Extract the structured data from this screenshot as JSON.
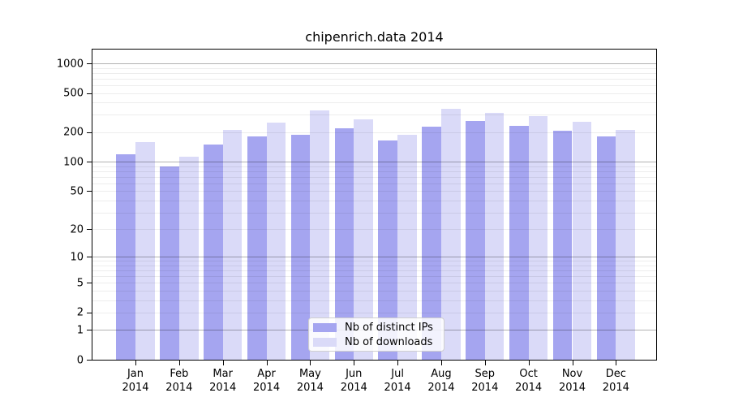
{
  "title": "chipenrich.data 2014",
  "chart_data": {
    "type": "bar",
    "title": "chipenrich.data 2014",
    "x_categories": [
      "Jan",
      "Feb",
      "Mar",
      "Apr",
      "May",
      "Jun",
      "Jul",
      "Aug",
      "Sep",
      "Oct",
      "Nov",
      "Dec"
    ],
    "x_year": "2014",
    "series": [
      {
        "name": "Nb of distinct IPs",
        "color": "#a5a5f0",
        "values": [
          120,
          89,
          150,
          180,
          190,
          218,
          166,
          227,
          260,
          233,
          206,
          181
        ]
      },
      {
        "name": "Nb of downloads",
        "color": "#dadaf8",
        "values": [
          160,
          112,
          212,
          249,
          330,
          272,
          189,
          346,
          313,
          289,
          256,
          213
        ]
      }
    ],
    "y_scale": "log1p",
    "y_ticks": [
      0,
      1,
      2,
      5,
      10,
      20,
      50,
      100,
      200,
      500,
      1000
    ],
    "y_major_gridlines": [
      1,
      10,
      100,
      1000
    ],
    "ylim": [
      0,
      1433
    ],
    "grid": true,
    "legend_position": "bottom-center"
  },
  "colors": {
    "grid_major": "rgba(0,0,0,0.30)",
    "grid_minor": "rgba(0,0,0,0.07)",
    "axis": "#000000"
  }
}
